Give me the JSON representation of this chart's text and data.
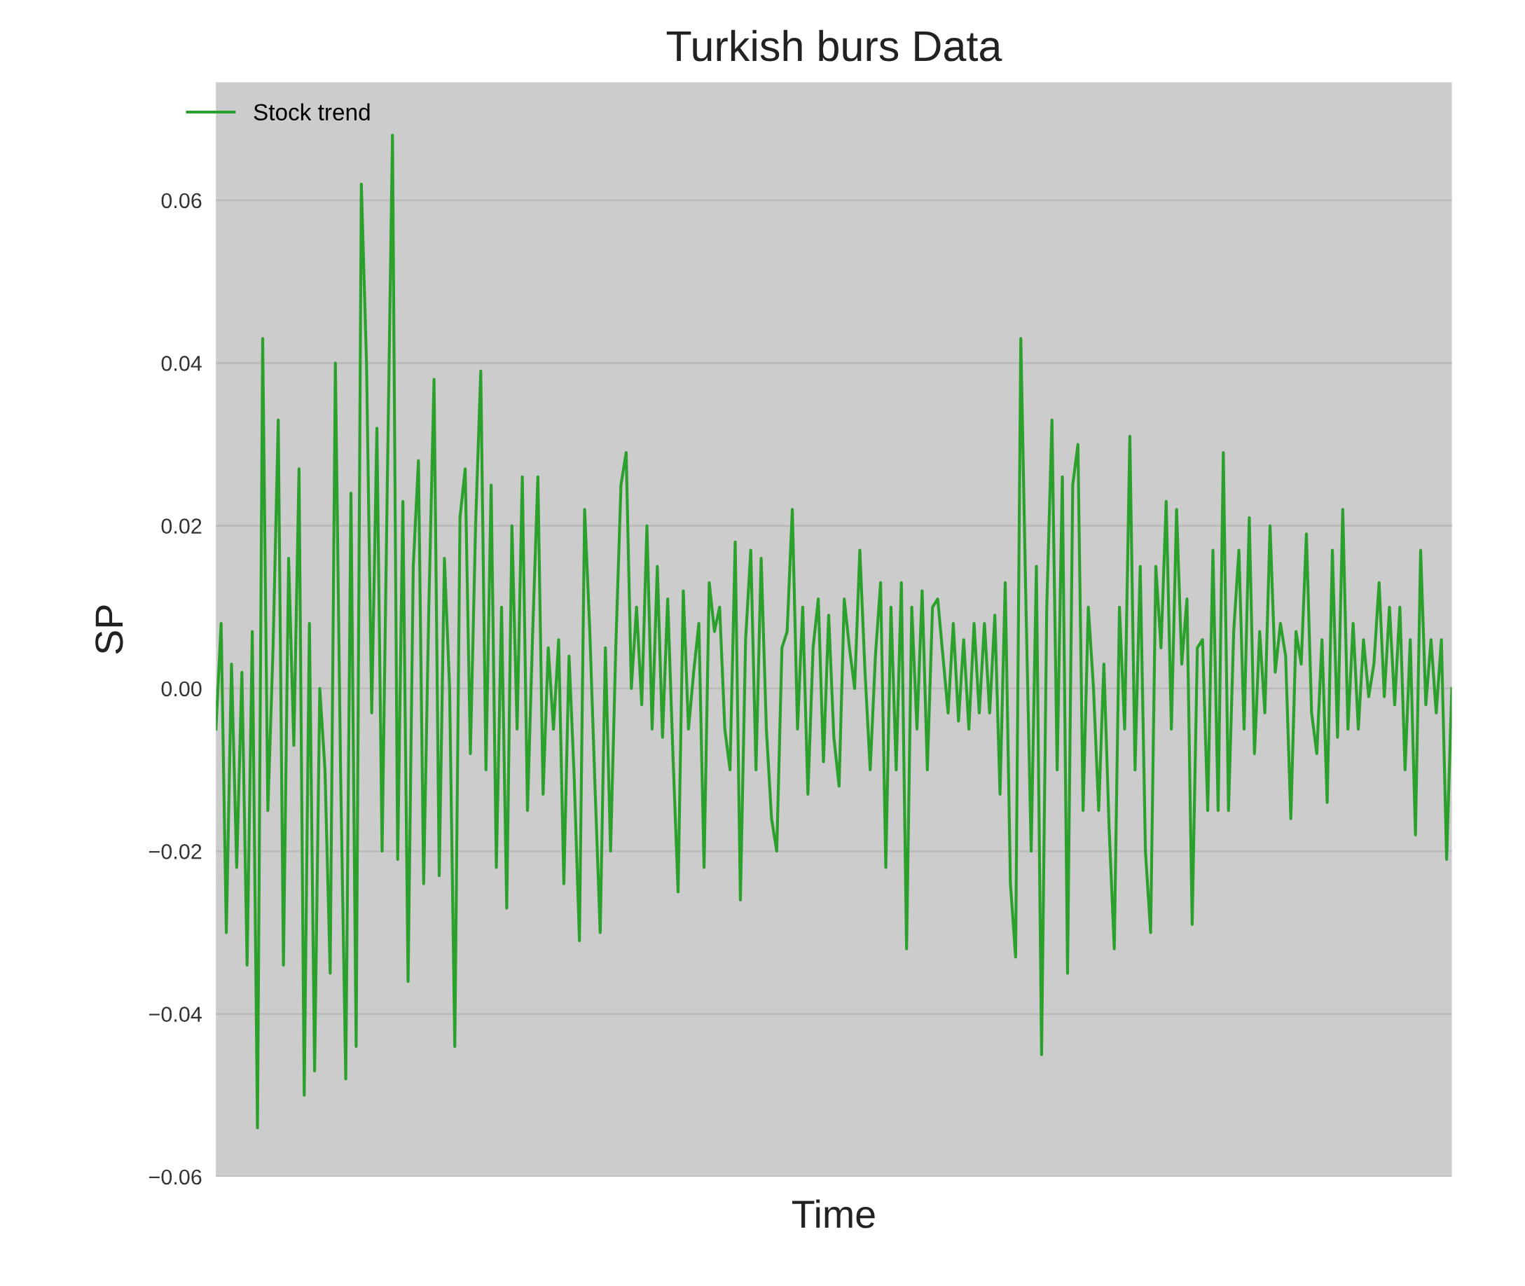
{
  "chart_data": {
    "type": "line",
    "title": "Turkish burs Data",
    "xlabel": "Time",
    "ylabel": "SP",
    "categories": [
      null,
      null,
      null,
      null,
      null,
      null,
      null,
      null,
      null,
      null,
      null,
      null,
      null,
      null,
      null,
      null,
      null,
      null,
      null,
      null,
      null,
      null,
      null,
      null,
      null,
      null,
      null,
      null,
      null,
      null,
      null,
      null,
      null,
      null,
      null,
      null,
      null,
      null,
      null,
      null,
      null,
      null,
      null,
      null,
      null,
      null,
      null,
      null,
      null,
      null,
      null,
      null,
      null,
      null,
      null,
      null,
      null,
      null,
      null,
      null,
      null,
      null,
      null,
      null,
      null,
      null,
      null,
      null,
      null,
      null,
      null,
      null,
      null,
      null,
      null,
      null,
      null,
      null,
      null,
      null,
      null,
      null,
      null,
      null,
      null,
      null,
      null,
      null,
      null,
      null,
      null,
      null,
      null,
      null,
      null,
      null,
      null,
      null,
      null,
      null,
      null,
      null,
      null,
      null,
      null,
      null,
      null,
      null,
      null,
      null,
      null,
      null,
      null,
      null,
      null,
      null,
      null,
      null,
      null,
      null,
      null,
      null,
      null,
      null,
      null,
      null,
      null,
      null,
      null,
      null,
      null,
      null,
      null,
      null,
      null,
      null,
      null,
      null,
      null,
      null,
      null,
      null,
      null,
      null,
      null,
      null,
      null,
      null,
      null,
      null,
      null,
      null,
      null,
      null,
      null,
      null,
      null,
      null,
      null,
      null,
      null,
      null,
      null,
      null,
      null,
      null,
      null,
      null,
      null,
      null,
      null,
      null,
      null,
      null,
      null,
      null,
      null,
      null,
      null,
      null,
      null,
      null,
      null,
      null,
      null,
      null,
      null,
      null,
      null,
      null,
      null,
      null,
      null,
      null,
      null,
      null,
      null,
      null,
      null,
      null,
      null,
      null,
      null,
      null,
      null,
      null,
      null,
      null,
      null,
      null,
      null,
      null,
      null,
      null,
      null,
      null,
      null,
      null,
      null,
      null,
      null,
      null,
      null,
      null,
      null,
      null,
      null,
      null,
      null,
      null,
      null,
      null,
      null,
      null,
      null,
      null,
      null,
      null,
      null
    ],
    "series": [
      {
        "name": "Stock trend",
        "color": "#2ca02c",
        "values": [
          -0.005,
          0.008,
          -0.03,
          0.003,
          -0.022,
          0.002,
          -0.034,
          0.007,
          -0.054,
          0.043,
          -0.015,
          0.005,
          0.033,
          -0.034,
          0.016,
          -0.007,
          0.027,
          -0.05,
          0.008,
          -0.047,
          0.0,
          -0.01,
          -0.035,
          0.04,
          -0.01,
          -0.048,
          0.024,
          -0.044,
          0.062,
          0.04,
          -0.003,
          0.032,
          -0.02,
          0.025,
          0.068,
          -0.021,
          0.023,
          -0.036,
          0.015,
          0.028,
          -0.024,
          0.01,
          0.038,
          -0.023,
          0.016,
          0.0,
          -0.044,
          0.021,
          0.027,
          -0.008,
          0.02,
          0.039,
          -0.01,
          0.025,
          -0.022,
          0.01,
          -0.027,
          0.02,
          -0.005,
          0.026,
          -0.015,
          0.007,
          0.026,
          -0.013,
          0.005,
          -0.005,
          0.006,
          -0.024,
          0.004,
          -0.011,
          -0.031,
          0.022,
          0.007,
          -0.012,
          -0.03,
          0.005,
          -0.02,
          0.005,
          0.025,
          0.029,
          0.0,
          0.01,
          -0.002,
          0.02,
          -0.005,
          0.015,
          -0.006,
          0.011,
          -0.008,
          -0.025,
          0.012,
          -0.005,
          0.002,
          0.008,
          -0.022,
          0.013,
          0.007,
          0.01,
          -0.005,
          -0.01,
          0.018,
          -0.026,
          0.006,
          0.017,
          -0.01,
          0.016,
          -0.005,
          -0.016,
          -0.02,
          0.005,
          0.007,
          0.022,
          -0.005,
          0.01,
          -0.013,
          0.005,
          0.011,
          -0.009,
          0.009,
          -0.006,
          -0.012,
          0.011,
          0.005,
          0.0,
          0.017,
          0.002,
          -0.01,
          0.004,
          0.013,
          -0.022,
          0.01,
          -0.01,
          0.013,
          -0.032,
          0.01,
          -0.005,
          0.012,
          -0.01,
          0.01,
          0.011,
          0.004,
          -0.003,
          0.008,
          -0.004,
          0.006,
          -0.005,
          0.008,
          -0.003,
          0.008,
          -0.003,
          0.009,
          -0.013,
          0.013,
          -0.024,
          -0.033,
          0.043,
          0.01,
          -0.02,
          0.015,
          -0.045,
          0.01,
          0.033,
          -0.01,
          0.026,
          -0.035,
          0.025,
          0.03,
          -0.015,
          0.01,
          0.0,
          -0.015,
          0.003,
          -0.017,
          -0.032,
          0.01,
          -0.005,
          0.031,
          -0.01,
          0.015,
          -0.02,
          -0.03,
          0.015,
          0.005,
          0.023,
          -0.005,
          0.022,
          0.003,
          0.011,
          -0.029,
          0.005,
          0.006,
          -0.015,
          0.017,
          -0.015,
          0.029,
          -0.015,
          0.007,
          0.017,
          -0.005,
          0.021,
          -0.008,
          0.007,
          -0.003,
          0.02,
          0.002,
          0.008,
          0.004,
          -0.016,
          0.007,
          0.003,
          0.019,
          -0.003,
          -0.008,
          0.006,
          -0.014,
          0.017,
          -0.006,
          0.022,
          -0.005,
          0.008,
          -0.005,
          0.006,
          -0.001,
          0.003,
          0.013,
          -0.001,
          0.01,
          -0.002,
          0.01,
          -0.01,
          0.006,
          -0.018,
          0.017,
          -0.002,
          0.006,
          -0.003,
          0.006,
          -0.021,
          0.0
        ]
      }
    ],
    "ylim": [
      -0.06,
      0.0745
    ],
    "yticks": [
      {
        "value": -0.06,
        "label": "−0.06"
      },
      {
        "value": -0.04,
        "label": "−0.04"
      },
      {
        "value": -0.02,
        "label": "−0.02"
      },
      {
        "value": 0,
        "label": "0.00"
      },
      {
        "value": 0.02,
        "label": "0.02"
      },
      {
        "value": 0.04,
        "label": "0.04"
      },
      {
        "value": 0.06,
        "label": "0.06"
      }
    ],
    "grid": "y",
    "legend": "top left",
    "marker": "none",
    "line_style": "solid"
  }
}
